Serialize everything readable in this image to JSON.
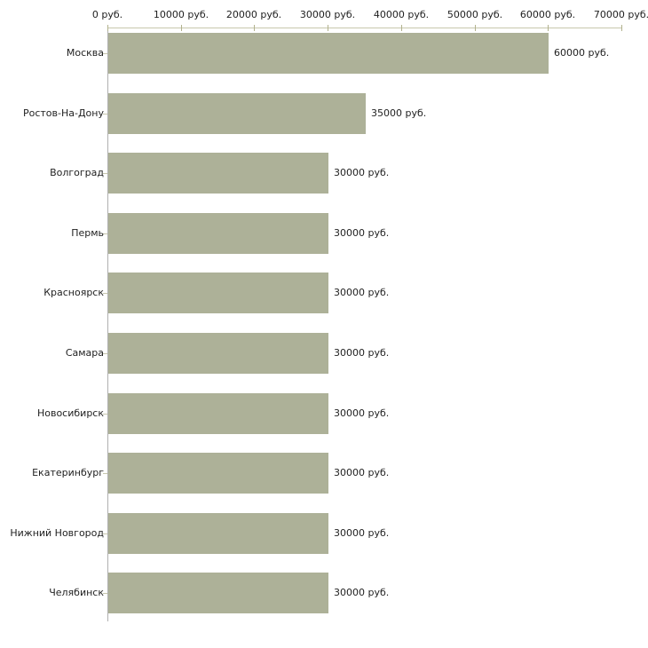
{
  "chart_data": {
    "type": "bar",
    "orientation": "horizontal",
    "title": "",
    "xlabel": "",
    "ylabel": "",
    "categories": [
      "Москва",
      "Ростов-На-Дону",
      "Волгоград",
      "Пермь",
      "Красноярск",
      "Самара",
      "Новосибирск",
      "Екатеринбург",
      "Нижний Новгород",
      "Челябинск"
    ],
    "values": [
      60000,
      35000,
      30000,
      30000,
      30000,
      30000,
      30000,
      30000,
      30000,
      30000
    ],
    "value_labels": [
      "60000 руб.",
      "35000 руб.",
      "30000 руб.",
      "30000 руб.",
      "30000 руб.",
      "30000 руб.",
      "30000 руб.",
      "30000 руб.",
      "30000 руб.",
      "30000 руб."
    ],
    "x_axis": {
      "position": "top",
      "range": [
        0,
        70000
      ],
      "ticks": [
        0,
        10000,
        20000,
        30000,
        40000,
        50000,
        60000,
        70000
      ],
      "tick_labels": [
        "0 руб.",
        "10000 руб.",
        "20000 руб.",
        "30000 руб.",
        "40000 руб.",
        "50000 руб.",
        "60000 руб.",
        "70000 руб."
      ],
      "unit": "руб."
    },
    "grid": "off",
    "legend": "none",
    "colors": {
      "bar": "#adb198",
      "axis_line": "#c7c7ad",
      "axis_tick": "#b2b28e",
      "y_axis_line": "#b0b0b0",
      "text": "#1f1f1f",
      "background": "#ffffff"
    }
  }
}
